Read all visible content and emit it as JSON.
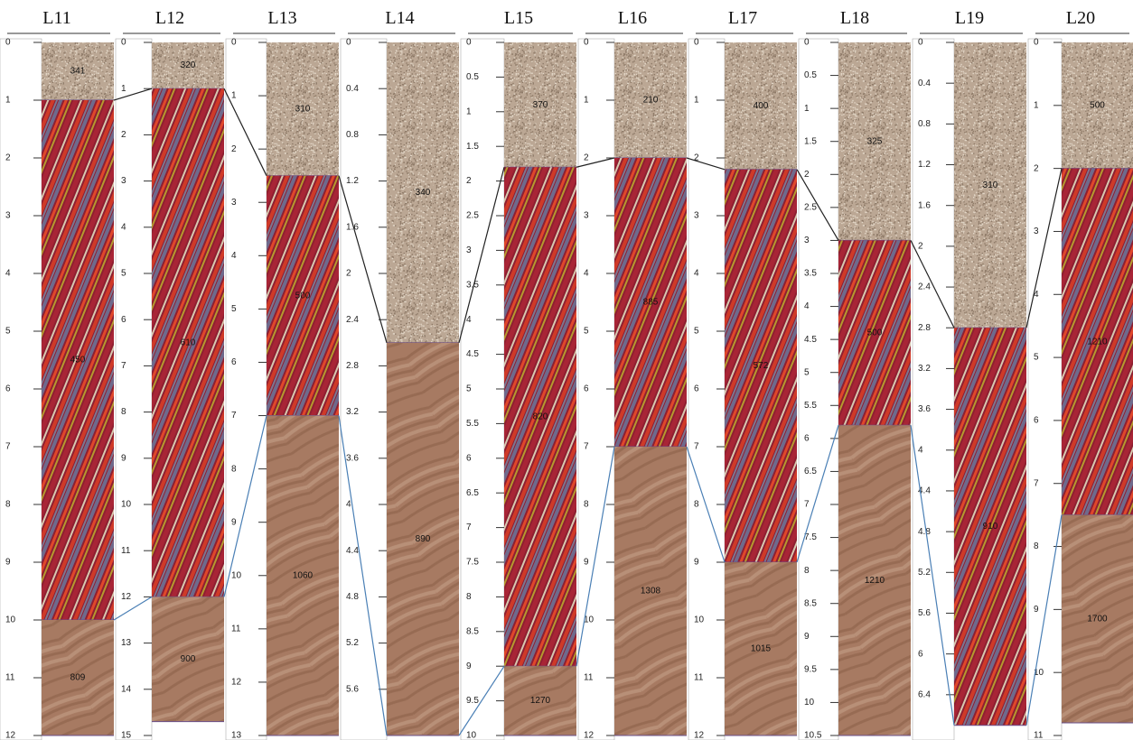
{
  "columns": [
    {
      "title": "L11",
      "range": [
        0,
        12
      ],
      "ticks": [
        0,
        1,
        2,
        3,
        4,
        5,
        6,
        7,
        8,
        9,
        10,
        11,
        12
      ],
      "layers": [
        {
          "top": 0,
          "bottom": 1,
          "label": 341
        },
        {
          "top": 1,
          "bottom": 10,
          "label": 450
        },
        {
          "top": 10,
          "bottom": 12,
          "label": 809
        }
      ]
    },
    {
      "title": "L12",
      "range": [
        0,
        15
      ],
      "ticks": [
        0,
        1,
        2,
        3,
        4,
        5,
        6,
        7,
        8,
        9,
        10,
        11,
        12,
        13,
        14,
        15
      ],
      "layers": [
        {
          "top": 0,
          "bottom": 1,
          "label": 320
        },
        {
          "top": 1,
          "bottom": 12,
          "label": 610
        },
        {
          "top": 12,
          "bottom": 14.7,
          "label": 900
        }
      ]
    },
    {
      "title": "L13",
      "range": [
        0,
        13
      ],
      "ticks": [
        0,
        1,
        2,
        3,
        4,
        5,
        6,
        7,
        8,
        9,
        10,
        11,
        12,
        13
      ],
      "layers": [
        {
          "top": 0,
          "bottom": 2.5,
          "label": 310
        },
        {
          "top": 2.5,
          "bottom": 7,
          "label": 500
        },
        {
          "top": 7,
          "bottom": 13,
          "label": 1060
        }
      ]
    },
    {
      "title": "L14",
      "range": [
        0,
        6
      ],
      "ticks": [
        0,
        0.4,
        0.8,
        1.2,
        1.6,
        2,
        2.4,
        2.8,
        3.2,
        3.6,
        4,
        4.4,
        4.8,
        5.2,
        5.6
      ],
      "layers": [
        {
          "top": 0,
          "bottom": 2.6,
          "label": 340
        },
        {
          "top": 2.6,
          "bottom": 6,
          "label": 890
        }
      ]
    },
    {
      "title": "L15",
      "range": [
        0,
        10
      ],
      "ticks": [
        0,
        0.5,
        1,
        1.5,
        2,
        2.5,
        3,
        3.5,
        4,
        4.5,
        5,
        5.5,
        6,
        6.5,
        7,
        7.5,
        8,
        8.5,
        9,
        9.5,
        10
      ],
      "layers": [
        {
          "top": 0,
          "bottom": 1.8,
          "label": 370
        },
        {
          "top": 1.8,
          "bottom": 9,
          "label": 820
        },
        {
          "top": 9,
          "bottom": 10,
          "label": 1270
        }
      ]
    },
    {
      "title": "L16",
      "range": [
        0,
        12
      ],
      "ticks": [
        0,
        1,
        2,
        3,
        4,
        5,
        6,
        7,
        8,
        9,
        10,
        11,
        12
      ],
      "layers": [
        {
          "top": 0,
          "bottom": 2,
          "label": 210
        },
        {
          "top": 2,
          "bottom": 7,
          "label": 885
        },
        {
          "top": 7,
          "bottom": 12,
          "label": 1308
        }
      ]
    },
    {
      "title": "L17",
      "range": [
        0,
        12
      ],
      "ticks": [
        0,
        1,
        2,
        3,
        4,
        5,
        6,
        7,
        8,
        9,
        10,
        11,
        12
      ],
      "layers": [
        {
          "top": 0,
          "bottom": 2.2,
          "label": 400
        },
        {
          "top": 2.2,
          "bottom": 9,
          "label": 572
        },
        {
          "top": 9,
          "bottom": 12,
          "label": 1015
        }
      ]
    },
    {
      "title": "L18",
      "range": [
        0,
        10.5
      ],
      "ticks": [
        0,
        0.5,
        1,
        1.5,
        2,
        2.5,
        3,
        3.5,
        4,
        4.5,
        5,
        5.5,
        6,
        6.5,
        7,
        7.5,
        8,
        8.5,
        9,
        9.5,
        10,
        10.5
      ],
      "layers": [
        {
          "top": 0,
          "bottom": 3,
          "label": 325
        },
        {
          "top": 3,
          "bottom": 5.8,
          "label": 500
        },
        {
          "top": 5.8,
          "bottom": 10.5,
          "label": 1210
        }
      ]
    },
    {
      "title": "L19",
      "range": [
        0,
        6.8
      ],
      "ticks": [
        0,
        0.4,
        0.8,
        1.2,
        1.6,
        2,
        2.4,
        2.8,
        3.2,
        3.6,
        4,
        4.4,
        4.8,
        5.2,
        5.6,
        6,
        6.4
      ],
      "layers": [
        {
          "top": 0,
          "bottom": 2.8,
          "label": 310
        },
        {
          "top": 2.8,
          "bottom": 6.7,
          "label": 910
        }
      ]
    },
    {
      "title": "L20",
      "range": [
        0,
        11
      ],
      "ticks": [
        0,
        1,
        2,
        3,
        4,
        5,
        6,
        7,
        8,
        9,
        10,
        11
      ],
      "layers": [
        {
          "top": 0,
          "bottom": 2,
          "label": 500
        },
        {
          "top": 2,
          "bottom": 7.5,
          "label": 1210
        },
        {
          "top": 7.5,
          "bottom": 10.8,
          "label": 1700
        }
      ]
    }
  ]
}
